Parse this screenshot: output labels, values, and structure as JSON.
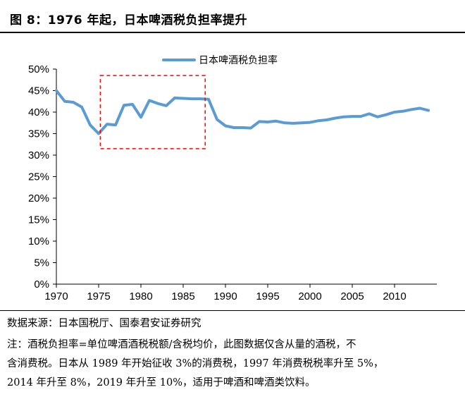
{
  "figure": {
    "title": "图 8：1976 年起，日本啤酒税负担率提升",
    "source": "数据来源：日本国税厅、国泰君安证券研究",
    "note_lines": [
      "注：酒税负担率=单位啤酒酒税税额/含税均价，此图数据仅含从量的酒税，不",
      "含消费税。日本从 1989 年开始征收 3%的消费税，1997 年消费税税率升至 5%，",
      "2014 年升至 8%，2019 年升至 10%，适用于啤酒和啤酒类饮料。"
    ]
  },
  "colors": {
    "series": "#5b9bd5",
    "highlight_box": "#ff0000",
    "axis": "#000000"
  },
  "chart_data": {
    "type": "line",
    "title": "",
    "xlabel": "",
    "ylabel": "",
    "xlim": [
      1970,
      2015
    ],
    "ylim": [
      0,
      50
    ],
    "x_ticks": [
      "1970",
      "1975",
      "1980",
      "1985",
      "1990",
      "1995",
      "2000",
      "2005",
      "2010"
    ],
    "y_ticks": [
      "0%",
      "5%",
      "10%",
      "15%",
      "20%",
      "25%",
      "30%",
      "35%",
      "40%",
      "45%",
      "50%"
    ],
    "legend": {
      "position": "top-right"
    },
    "grid": false,
    "highlight_box": {
      "x_range": [
        1975.2,
        1987.6
      ],
      "y_range": [
        31.5,
        48.5
      ]
    },
    "series": [
      {
        "name": "日本啤酒税负担率",
        "x": [
          1970,
          1971,
          1972,
          1973,
          1974,
          1975,
          1976,
          1977,
          1978,
          1979,
          1980,
          1981,
          1982,
          1983,
          1984,
          1985,
          1986,
          1987,
          1988,
          1989,
          1990,
          1991,
          1992,
          1993,
          1994,
          1995,
          1996,
          1997,
          1998,
          1999,
          2000,
          2001,
          2002,
          2003,
          2004,
          2005,
          2006,
          2007,
          2008,
          2009,
          2010,
          2011,
          2012,
          2013,
          2014
        ],
        "y": [
          45.0,
          42.5,
          42.3,
          41.2,
          37.0,
          35.0,
          37.2,
          37.0,
          41.6,
          41.8,
          38.8,
          42.7,
          42.0,
          41.5,
          43.3,
          43.2,
          43.1,
          43.1,
          43.0,
          38.3,
          36.8,
          36.4,
          36.4,
          36.3,
          37.8,
          37.7,
          37.9,
          37.5,
          37.4,
          37.5,
          37.6,
          38.0,
          38.2,
          38.6,
          38.9,
          39.0,
          39.0,
          39.6,
          38.9,
          39.4,
          40.0,
          40.2,
          40.6,
          40.9,
          40.4
        ]
      }
    ]
  }
}
